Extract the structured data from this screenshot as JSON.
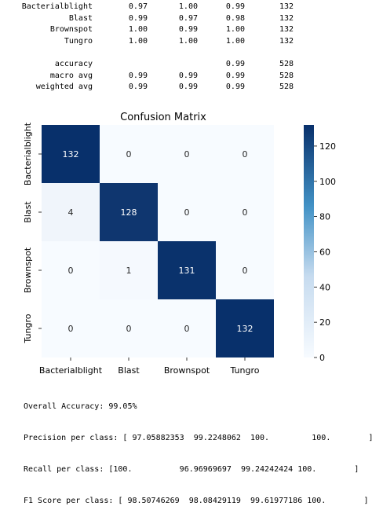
{
  "report": {
    "rows": [
      {
        "label": "Bacterialblight",
        "precision": "0.97",
        "recall": "1.00",
        "f1": "0.99",
        "support": "132"
      },
      {
        "label": "Blast",
        "precision": "0.99",
        "recall": "0.97",
        "f1": "0.98",
        "support": "132"
      },
      {
        "label": "Brownspot",
        "precision": "1.00",
        "recall": "0.99",
        "f1": "1.00",
        "support": "132"
      },
      {
        "label": "Tungro",
        "precision": "1.00",
        "recall": "1.00",
        "f1": "1.00",
        "support": "132"
      }
    ],
    "summary": [
      {
        "label": "accuracy",
        "precision": "",
        "recall": "",
        "f1": "0.99",
        "support": "528"
      },
      {
        "label": "macro avg",
        "precision": "0.99",
        "recall": "0.99",
        "f1": "0.99",
        "support": "528"
      },
      {
        "label": "weighted avg",
        "precision": "0.99",
        "recall": "0.99",
        "f1": "0.99",
        "support": "528"
      }
    ]
  },
  "chart_data": {
    "type": "heatmap",
    "title": "Confusion Matrix",
    "xlabel": "",
    "ylabel": "",
    "x_categories": [
      "Bacterialblight",
      "Blast",
      "Brownspot",
      "Tungro"
    ],
    "y_categories": [
      "Bacterialblight",
      "Blast",
      "Brownspot",
      "Tungro"
    ],
    "values": [
      [
        132,
        0,
        0,
        0
      ],
      [
        4,
        128,
        0,
        0
      ],
      [
        0,
        1,
        131,
        0
      ],
      [
        0,
        0,
        0,
        132
      ]
    ],
    "colorbar": {
      "min": 0,
      "max": 132,
      "ticks": [
        0,
        20,
        40,
        60,
        80,
        100,
        120
      ]
    },
    "colormap": "Blues",
    "colors": {
      "low": "#f7fbff",
      "high": "#08306b"
    }
  },
  "footer": {
    "overall": "Overall Accuracy: 99.05%",
    "precision": "Precision per class: [ 97.05882353  99.2248062  100.         100.        ]",
    "recall": "Recall per class: [100.          96.96969697  99.24242424 100.        ]",
    "f1": "F1 Score per class: [ 98.50746269  98.08429119  99.61977186 100.        ]"
  }
}
